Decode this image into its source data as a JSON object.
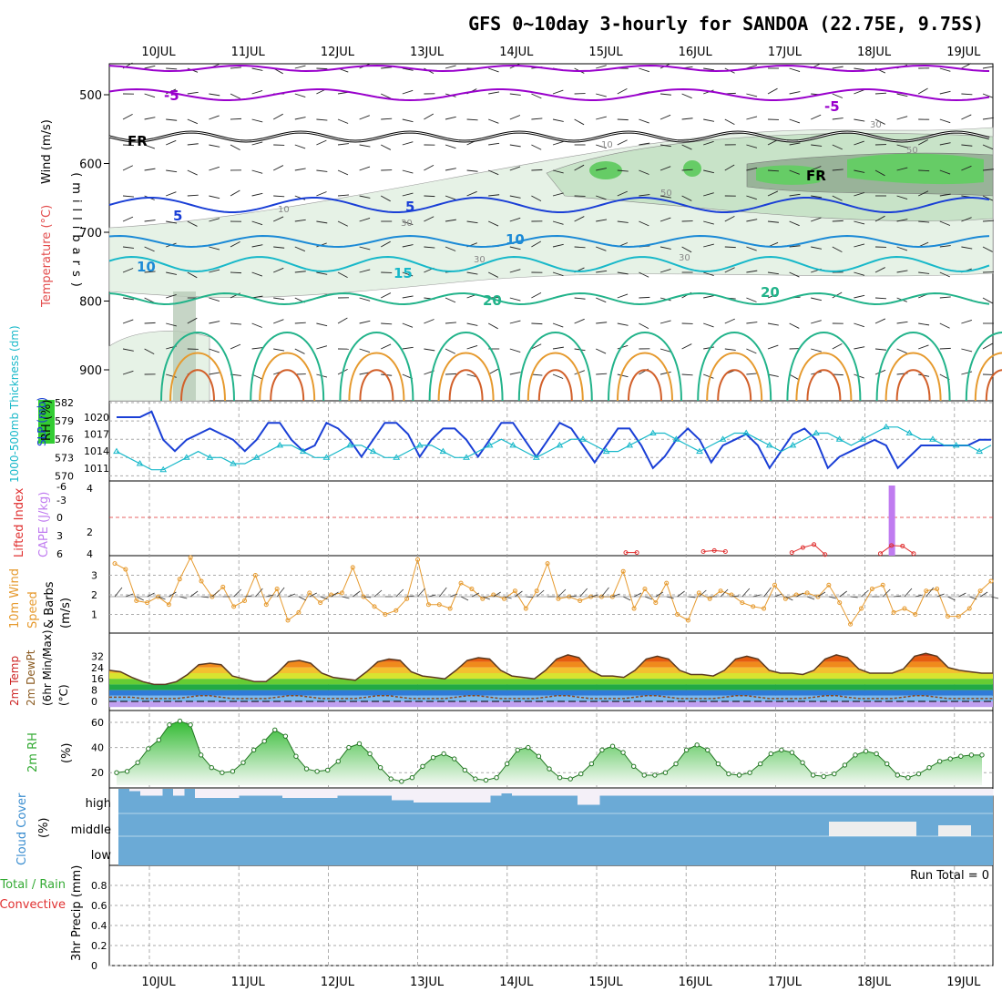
{
  "title": "GFS 0~10day 3-hourly for SANDOA (22.75E, 9.75S)",
  "colors": {
    "rh_green": "#33cc33",
    "purple": "#9900cc",
    "blue": "#1a3fd6",
    "cyan": "#17b8c9",
    "teal": "#22b38a",
    "orange": "#e69a2e",
    "dark_orange": "#d2602a",
    "cloud_blue": "#6baad6",
    "cape_purple": "#c07cf0",
    "lifted_red": "#e03030"
  },
  "chart_data": [
    {
      "panel": "upper-air",
      "type": "contour",
      "xticks": [
        "10JUL",
        "11JUL",
        "12JUL",
        "13JUL",
        "14JUL",
        "15JUL",
        "16JUL",
        "17JUL",
        "18JUL",
        "19JUL"
      ],
      "yticks": [
        500,
        600,
        700,
        800,
        900
      ],
      "ylabel": "(millibars)",
      "left_labels": [
        "Wind (m/s)",
        "Temperature (°C)",
        "RH (%)"
      ],
      "contour_labels": {
        "temperature": [
          "-5",
          "-5",
          "FR",
          "FR",
          "5",
          "5",
          "10",
          "10",
          "15",
          "20",
          "20"
        ],
        "rh": [
          "10",
          "10",
          "30",
          "30",
          "30",
          "50",
          "50",
          "30"
        ]
      }
    },
    {
      "panel": "slp-thickness",
      "type": "line",
      "left_ticks": [
        "582",
        "579",
        "576",
        "573",
        "570"
      ],
      "right_ticks": [
        "1020",
        "1017",
        "1014",
        "1011"
      ],
      "left_label": "1000-500mb Thickness (dm)",
      "right_label": "SLP (mb)",
      "series": [
        {
          "name": "SLP (mb)",
          "values": [
            1020,
            1020,
            1020,
            1021,
            1016,
            1014,
            1016,
            1017,
            1018,
            1017,
            1016,
            1014,
            1016,
            1019,
            1019,
            1016,
            1014,
            1015,
            1019,
            1018,
            1016,
            1013,
            1016,
            1019,
            1019,
            1017,
            1013,
            1016,
            1018,
            1018,
            1016,
            1013,
            1016,
            1019,
            1019,
            1016,
            1013,
            1016,
            1019,
            1018,
            1015,
            1012,
            1015,
            1018,
            1018,
            1015,
            1011,
            1013,
            1016,
            1018,
            1016,
            1012,
            1015,
            1016,
            1017,
            1015,
            1011,
            1014,
            1017,
            1018,
            1016,
            1011,
            1013,
            1014,
            1015,
            1016,
            1015,
            1011,
            1013,
            1015,
            1015,
            1015,
            1015,
            1015,
            1016,
            1016
          ],
          "color": "#1a3fd6"
        },
        {
          "name": "Thickness (dm)",
          "values": [
            574,
            573,
            572,
            571,
            571,
            572,
            573,
            574,
            573,
            573,
            572,
            572,
            573,
            574,
            575,
            575,
            574,
            573,
            573,
            574,
            575,
            575,
            574,
            573,
            573,
            574,
            575,
            575,
            574,
            573,
            573,
            574,
            575,
            576,
            575,
            574,
            573,
            574,
            575,
            576,
            576,
            575,
            574,
            574,
            575,
            576,
            577,
            577,
            576,
            575,
            574,
            575,
            576,
            577,
            577,
            576,
            575,
            574,
            575,
            576,
            577,
            577,
            576,
            575,
            576,
            577,
            578,
            578,
            577,
            576,
            576,
            575,
            575,
            575,
            574,
            575
          ],
          "color": "#17b8c9"
        }
      ]
    },
    {
      "panel": "cape-li",
      "type": "bar",
      "left_ticks": [
        "-6",
        "-3",
        "0",
        "3",
        "6"
      ],
      "right_ticks": [
        "4",
        "2",
        "4"
      ],
      "left_label": "Lifted Index",
      "right_label": "CAPE (J/kg)",
      "cape_spikes": [
        {
          "x": 70,
          "value": 60
        }
      ],
      "lifted_index_segments": [
        {
          "x": [
            46,
            47
          ],
          "values": [
            5.2,
            5.2
          ]
        },
        {
          "x": [
            53,
            54,
            55
          ],
          "values": [
            5.0,
            4.8,
            5.0
          ]
        },
        {
          "x": [
            61,
            62,
            63,
            64
          ],
          "values": [
            5.2,
            4.2,
            3.6,
            5.6
          ]
        },
        {
          "x": [
            69,
            70,
            71,
            72
          ],
          "values": [
            5.4,
            3.8,
            3.9,
            5.4
          ]
        }
      ]
    },
    {
      "panel": "wind10m",
      "type": "line",
      "left_ticks": [
        "3",
        "2",
        "1"
      ],
      "left_label": "10m Wind Speed & Barbs (m/s)",
      "series": [
        {
          "name": "Speed",
          "values": [
            3.6,
            3.3,
            1.7,
            1.6,
            1.9,
            1.5,
            2.8,
            3.9,
            2.7,
            1.9,
            2.4,
            1.4,
            1.7,
            3.0,
            1.5,
            2.3,
            0.7,
            1.1,
            2.1,
            1.6,
            2.0,
            2.1,
            3.4,
            1.9,
            1.4,
            1.0,
            1.2,
            1.8,
            3.8,
            1.5,
            1.5,
            1.3,
            2.6,
            2.3,
            1.8,
            2.0,
            1.8,
            2.2,
            1.3,
            2.2,
            3.6,
            1.8,
            1.9,
            1.7,
            1.9,
            1.9,
            1.9,
            3.2,
            1.3,
            2.3,
            1.6,
            2.6,
            1.0,
            0.7,
            2.1,
            1.8,
            2.2,
            2.0,
            1.6,
            1.4,
            1.3,
            2.5,
            1.8,
            2.0,
            2.1,
            1.9,
            2.5,
            1.6,
            0.5,
            1.3,
            2.3,
            2.5,
            1.1,
            1.3,
            1.0,
            2.2,
            2.3,
            0.9,
            0.9,
            1.3,
            2.2,
            2.7
          ],
          "color": "#e69a2e"
        }
      ]
    },
    {
      "panel": "temp2m",
      "type": "area",
      "left_ticks": [
        "32",
        "24",
        "16",
        "8",
        "0"
      ],
      "left_label": "2m Temp 2m DewPt (6hr Min/Max) (°C)",
      "series": [
        {
          "name": "2m Temp",
          "values": [
            22,
            21,
            17,
            14,
            12,
            12,
            14,
            19,
            26,
            27,
            26,
            18,
            16,
            14,
            14,
            20,
            28,
            29,
            27,
            20,
            17,
            16,
            15,
            21,
            28,
            30,
            29,
            21,
            18,
            17,
            16,
            22,
            29,
            31,
            30,
            22,
            18,
            17,
            16,
            22,
            30,
            33,
            31,
            22,
            18,
            18,
            17,
            22,
            30,
            32,
            30,
            22,
            19,
            19,
            18,
            22,
            30,
            32,
            30,
            22,
            20,
            20,
            19,
            22,
            30,
            33,
            31,
            23,
            20,
            20,
            20,
            23,
            32,
            34,
            32,
            24,
            22,
            21,
            20,
            20
          ]
        },
        {
          "name": "2m DewPt",
          "values": [
            3,
            3,
            3,
            2,
            2,
            2,
            2,
            3,
            4,
            4,
            3,
            2,
            2,
            2,
            2,
            3,
            4,
            4,
            3,
            2,
            2,
            2,
            2,
            3,
            4,
            4,
            3,
            2,
            2,
            2,
            2,
            3,
            4,
            4,
            3,
            2,
            2,
            2,
            2,
            3,
            4,
            4,
            3,
            2,
            2,
            2,
            2,
            3,
            4,
            4,
            3,
            2,
            2,
            2,
            2,
            3,
            4,
            4,
            3,
            2,
            2,
            2,
            2,
            3,
            4,
            4,
            3,
            2,
            2,
            2,
            2,
            3,
            4,
            4,
            3,
            2,
            2,
            2,
            2,
            2
          ]
        }
      ]
    },
    {
      "panel": "rh2m",
      "type": "area",
      "left_ticks": [
        "60",
        "40",
        "20"
      ],
      "left_label": "2m RH (%)",
      "series": [
        {
          "name": "2m RH",
          "values": [
            20,
            21,
            28,
            39,
            46,
            58,
            61,
            58,
            34,
            24,
            20,
            21,
            28,
            38,
            45,
            54,
            49,
            33,
            23,
            21,
            22,
            29,
            40,
            43,
            35,
            24,
            15,
            13,
            16,
            25,
            32,
            35,
            31,
            22,
            15,
            14,
            16,
            27,
            38,
            40,
            33,
            23,
            16,
            15,
            19,
            27,
            38,
            41,
            36,
            25,
            18,
            18,
            20,
            27,
            38,
            42,
            38,
            27,
            19,
            18,
            20,
            27,
            35,
            38,
            36,
            28,
            18,
            17,
            19,
            26,
            34,
            37,
            35,
            27,
            18,
            16,
            19,
            24,
            29,
            31,
            33,
            34,
            34
          ]
        }
      ]
    },
    {
      "panel": "cloud",
      "type": "bar",
      "left_ticks": [
        "high",
        "middle",
        "low"
      ],
      "left_label": "Cloud Cover (%)",
      "high_cover": [
        0,
        10,
        30,
        30,
        0,
        30,
        0,
        40,
        40,
        40,
        40,
        30,
        30,
        30,
        30,
        40,
        40,
        40,
        40,
        40,
        30,
        30,
        30,
        30,
        30,
        50,
        50,
        60,
        60,
        60,
        60,
        60,
        60,
        60,
        30,
        20,
        30,
        30,
        30,
        30,
        30,
        30,
        70,
        70,
        30,
        30,
        30,
        30,
        30,
        30,
        30,
        30,
        30,
        30,
        30,
        30,
        30,
        30,
        30,
        30,
        30,
        30,
        30,
        30,
        30,
        30,
        30,
        30,
        30,
        30,
        30,
        30,
        30,
        30,
        30,
        30,
        30,
        30,
        30,
        30
      ],
      "middle_gaps": [
        {
          "x": [
            65,
            73
          ],
          "value": 20
        },
        {
          "x": [
            75,
            78
          ],
          "value": 15
        }
      ]
    },
    {
      "panel": "precip",
      "type": "bar",
      "left_ticks": [
        "0.8",
        "0.6",
        "0.4",
        "0.2",
        "0"
      ],
      "left_label": "3hr Precip (mm)",
      "legend": [
        "Total / Rain",
        "Convective"
      ],
      "run_total": "Run Total = 0",
      "values": []
    }
  ]
}
